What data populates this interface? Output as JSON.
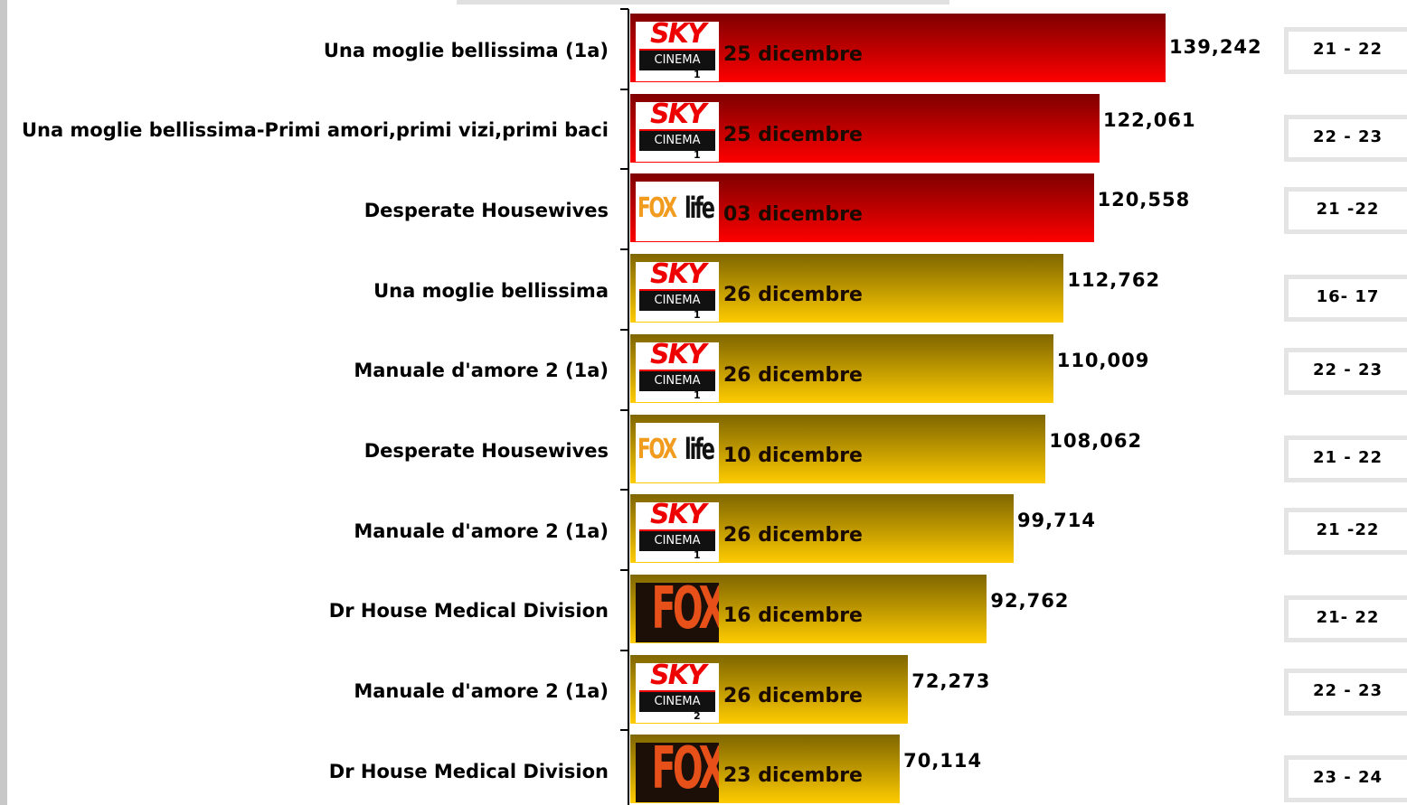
{
  "chart_data": {
    "type": "bar",
    "categories": [
      "Una moglie bellissima (1a)",
      "Una moglie bellissima-Primi amori,primi vizi,primi baci",
      "Desperate Housewives",
      "Una moglie bellissima",
      "Manuale d'amore 2 (1a)",
      "Desperate Housewives",
      "Manuale d'amore 2 (1a)",
      "Dr House Medical Division",
      "Manuale d'amore 2 (1a)",
      "Dr House Medical Division"
    ],
    "values": [
      139242,
      122061,
      120558,
      112762,
      110009,
      108062,
      99714,
      92762,
      72273,
      70114
    ],
    "value_labels": [
      "139,242",
      "122,061",
      "120,558",
      "112,762",
      "110,009",
      "108,062",
      "99,714",
      "92,762",
      "72,273",
      "70,114"
    ],
    "dates": [
      "25 dicembre",
      "25 dicembre",
      "03 dicembre",
      "26 dicembre",
      "26 dicembre",
      "10 dicembre",
      "26 dicembre",
      "16 dicembre",
      "26 dicembre",
      "23 dicembre"
    ],
    "times": [
      "21 - 22",
      "22 - 23",
      "21 -22",
      "16- 17",
      "22 - 23",
      "21 - 22",
      "21 -22",
      "21- 22",
      "22 - 23",
      "23 - 24"
    ],
    "colors": [
      "#ff0000",
      "#ff0000",
      "#ff0000",
      "#ffcc00",
      "#ffcc00",
      "#ffcc00",
      "#ffcc00",
      "#ffcc00",
      "#ffcc00",
      "#ffcc00"
    ],
    "logos": [
      {
        "brand": "SKY",
        "sub": "CINEMA",
        "num": "1"
      },
      {
        "brand": "SKY",
        "sub": "CINEMA",
        "num": "1"
      },
      {
        "brand": "FOX",
        "sub": "life"
      },
      {
        "brand": "SKY",
        "sub": "CINEMA",
        "num": "1"
      },
      {
        "brand": "SKY",
        "sub": "CINEMA",
        "num": "1"
      },
      {
        "brand": "FOX",
        "sub": "life"
      },
      {
        "brand": "SKY",
        "sub": "CINEMA",
        "num": "1"
      },
      {
        "brand": "FOX"
      },
      {
        "brand": "SKY",
        "sub": "CINEMA",
        "num": "2"
      },
      {
        "brand": "FOX"
      }
    ]
  }
}
